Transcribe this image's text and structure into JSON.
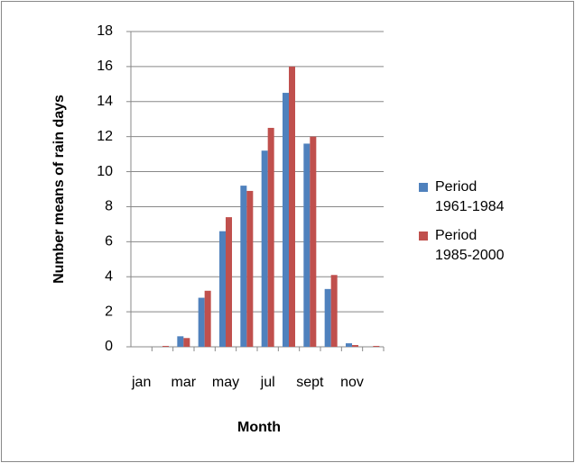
{
  "chart_data": {
    "type": "bar",
    "x_label": "Month",
    "y_label": "Number means of rain days",
    "categories": [
      "jan",
      null,
      "mar",
      null,
      "may",
      null,
      "jul",
      null,
      "sept",
      null,
      "nov",
      null
    ],
    "series": [
      {
        "name": "Period 1961-1984",
        "color": "#4f81bd",
        "values": [
          0,
          0,
          0.6,
          2.8,
          6.6,
          9.2,
          11.2,
          14.5,
          11.6,
          3.3,
          0.2,
          0
        ]
      },
      {
        "name": "Period 1985-2000",
        "color": "#c0504d",
        "values": [
          0,
          0.05,
          0.5,
          3.2,
          7.4,
          8.9,
          12.5,
          16.0,
          12.0,
          4.1,
          0.1,
          0.05
        ]
      }
    ],
    "ylim": [
      0,
      18
    ],
    "yticks": [
      0,
      2,
      4,
      6,
      8,
      10,
      12,
      14,
      16,
      18
    ],
    "grid": true,
    "legend": "right"
  }
}
